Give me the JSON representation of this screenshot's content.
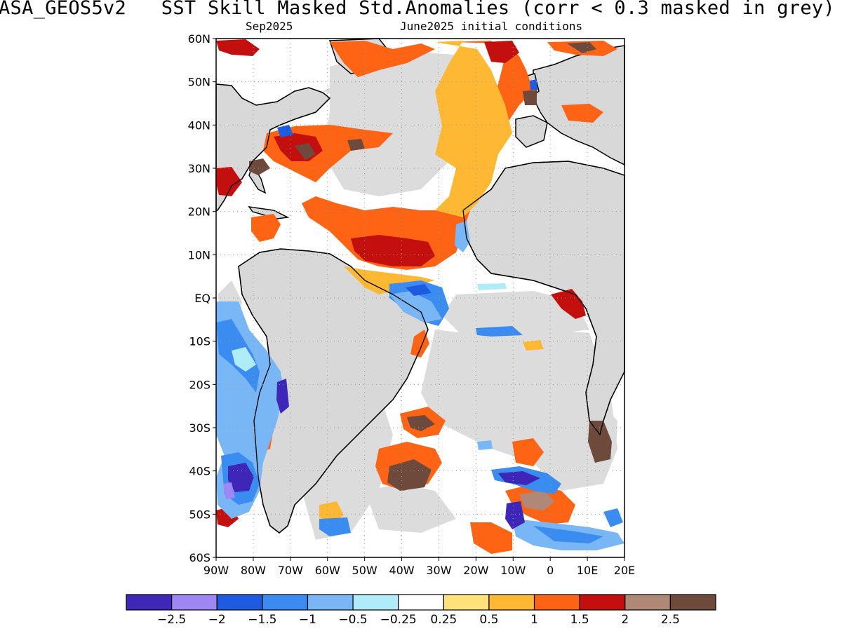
{
  "title": "ASA_GEOS5v2   SST Skill Masked Std.Anomalies (corr < 0.3 masked in grey)",
  "subtitle_left": "Sep2025",
  "subtitle_right": "June2025 initial conditions",
  "lat_labels": [
    "60N",
    "50N",
    "40N",
    "30N",
    "20N",
    "10N",
    "EQ",
    "10S",
    "20S",
    "30S",
    "40S",
    "50S",
    "60S"
  ],
  "lon_labels": [
    "90W",
    "80W",
    "70W",
    "60W",
    "50W",
    "40W",
    "30W",
    "20W",
    "10W",
    "0",
    "10E",
    "20E"
  ],
  "colorbar": {
    "colors": [
      "#3e27b8",
      "#9f86f5",
      "#1e5be0",
      "#3a8cf0",
      "#78b6f5",
      "#b0ecf8",
      "#ffffff",
      "#ffe27a",
      "#ffb833",
      "#ff6414",
      "#c40f0f",
      "#b08878",
      "#6e4a3c"
    ],
    "labels": [
      "−2.5",
      "−2",
      "−1.5",
      "−1",
      "−0.5",
      "−0.25",
      "0.25",
      "0.5",
      "1",
      "1.5",
      "2",
      "2.5"
    ]
  },
  "map_colors": {
    "mask_grey": "#dcdcdc",
    "land_grey": "#d8d8d8"
  }
}
